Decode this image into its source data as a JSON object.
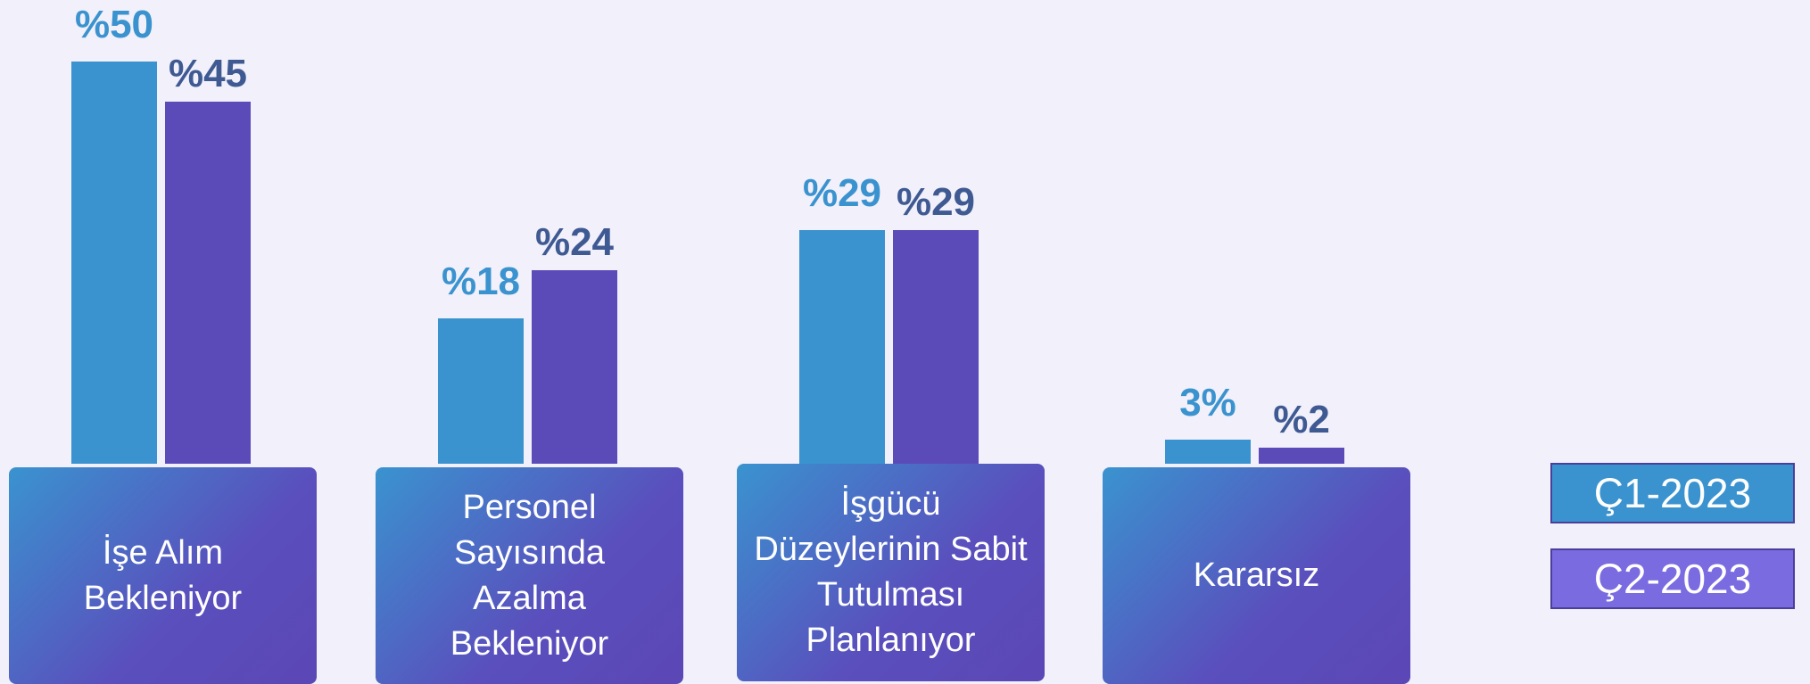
{
  "chart_data": {
    "type": "bar",
    "categories": [
      "İşe Alım Bekleniyor",
      "Personel Sayısında Azalma Bekleniyor",
      "İşgücü Düzeylerinin Sabit Tutulması Planlanıyor",
      "Kararsız"
    ],
    "series": [
      {
        "name": "Ç1-2023",
        "color": "#3a93cf",
        "values": [
          50,
          18,
          29,
          3
        ],
        "value_labels": [
          "%50",
          "%18",
          "%29",
          "3%"
        ]
      },
      {
        "name": "Ç2-2023",
        "color": "#5b4bb9",
        "values": [
          45,
          24,
          29,
          2
        ],
        "value_labels": [
          "%45",
          "%24",
          "%29",
          "%2"
        ]
      }
    ]
  }
}
